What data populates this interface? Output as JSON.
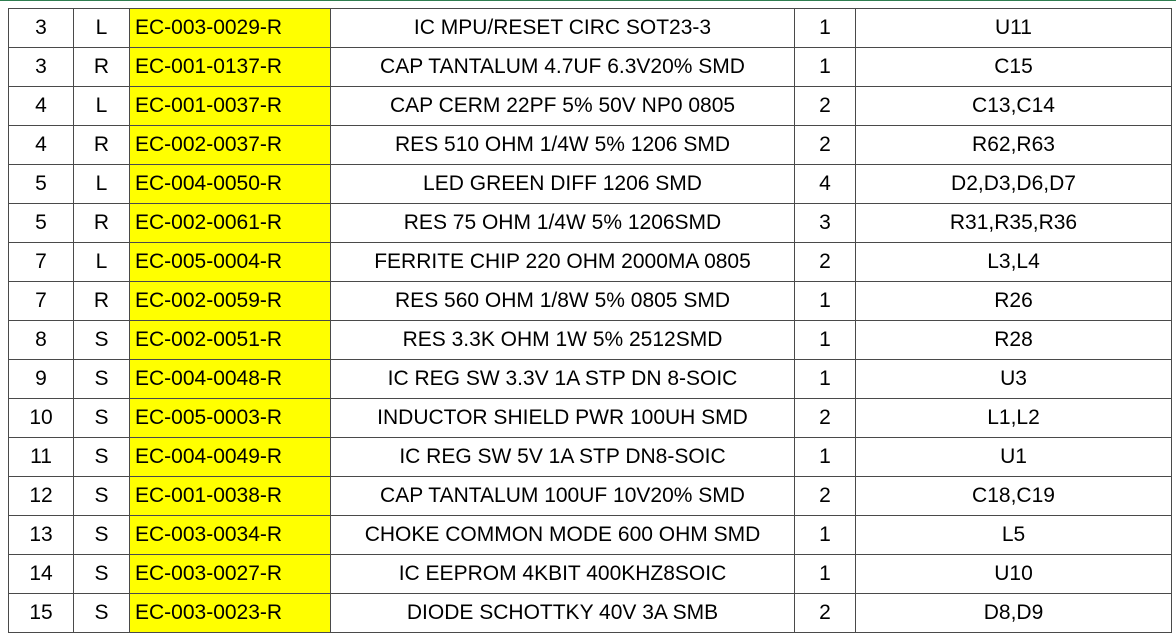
{
  "rows": [
    {
      "num": "3",
      "side": "L",
      "part": "EC-003-0029-R",
      "desc": "IC MPU/RESET CIRC SOT23-3",
      "qty": "1",
      "ref": "U11"
    },
    {
      "num": "3",
      "side": "R",
      "part": "EC-001-0137-R",
      "desc": "CAP TANTALUM 4.7UF 6.3V20% SMD",
      "qty": "1",
      "ref": "C15"
    },
    {
      "num": "4",
      "side": "L",
      "part": "EC-001-0037-R",
      "desc": "CAP CERM 22PF 5% 50V NP0 0805",
      "qty": "2",
      "ref": "C13,C14"
    },
    {
      "num": "4",
      "side": "R",
      "part": "EC-002-0037-R",
      "desc": "RES 510 OHM 1/4W 5% 1206 SMD",
      "qty": "2",
      "ref": "R62,R63"
    },
    {
      "num": "5",
      "side": "L",
      "part": "EC-004-0050-R",
      "desc": "LED GREEN DIFF 1206 SMD",
      "qty": "4",
      "ref": "D2,D3,D6,D7"
    },
    {
      "num": "5",
      "side": "R",
      "part": "EC-002-0061-R",
      "desc": "RES 75 OHM 1/4W 5% 1206SMD",
      "qty": "3",
      "ref": "R31,R35,R36"
    },
    {
      "num": "7",
      "side": "L",
      "part": "EC-005-0004-R",
      "desc": "FERRITE CHIP 220 OHM 2000MA 0805",
      "qty": "2",
      "ref": "L3,L4"
    },
    {
      "num": "7",
      "side": "R",
      "part": "EC-002-0059-R",
      "desc": "RES 560 OHM 1/8W 5% 0805 SMD",
      "qty": "1",
      "ref": "R26"
    },
    {
      "num": "8",
      "side": "S",
      "part": "EC-002-0051-R",
      "desc": "RES 3.3K OHM 1W 5% 2512SMD",
      "qty": "1",
      "ref": "R28"
    },
    {
      "num": "9",
      "side": "S",
      "part": "EC-004-0048-R",
      "desc": "IC REG SW 3.3V 1A STP DN 8-SOIC",
      "qty": "1",
      "ref": "U3"
    },
    {
      "num": "10",
      "side": "S",
      "part": "EC-005-0003-R",
      "desc": "INDUCTOR SHIELD PWR 100UH SMD",
      "qty": "2",
      "ref": "L1,L2"
    },
    {
      "num": "11",
      "side": "S",
      "part": "EC-004-0049-R",
      "desc": "IC REG SW 5V 1A STP DN8-SOIC",
      "qty": "1",
      "ref": "U1"
    },
    {
      "num": "12",
      "side": "S",
      "part": "EC-001-0038-R",
      "desc": "CAP TANTALUM 100UF 10V20% SMD",
      "qty": "2",
      "ref": "C18,C19"
    },
    {
      "num": "13",
      "side": "S",
      "part": "EC-003-0034-R",
      "desc": "CHOKE COMMON MODE 600 OHM SMD",
      "qty": "1",
      "ref": "L5"
    },
    {
      "num": "14",
      "side": "S",
      "part": "EC-003-0027-R",
      "desc": "IC EEPROM 4KBIT 400KHZ8SOIC",
      "qty": "1",
      "ref": "U10"
    },
    {
      "num": "15",
      "side": "S",
      "part": "EC-003-0023-R",
      "desc": "DIODE SCHOTTKY 40V 3A SMB",
      "qty": "2",
      "ref": "D8,D9"
    }
  ],
  "colors": {
    "part_highlight": "#ffff00",
    "grid_line": "#4a4a4a",
    "accent_line": "#2e7d4f"
  }
}
